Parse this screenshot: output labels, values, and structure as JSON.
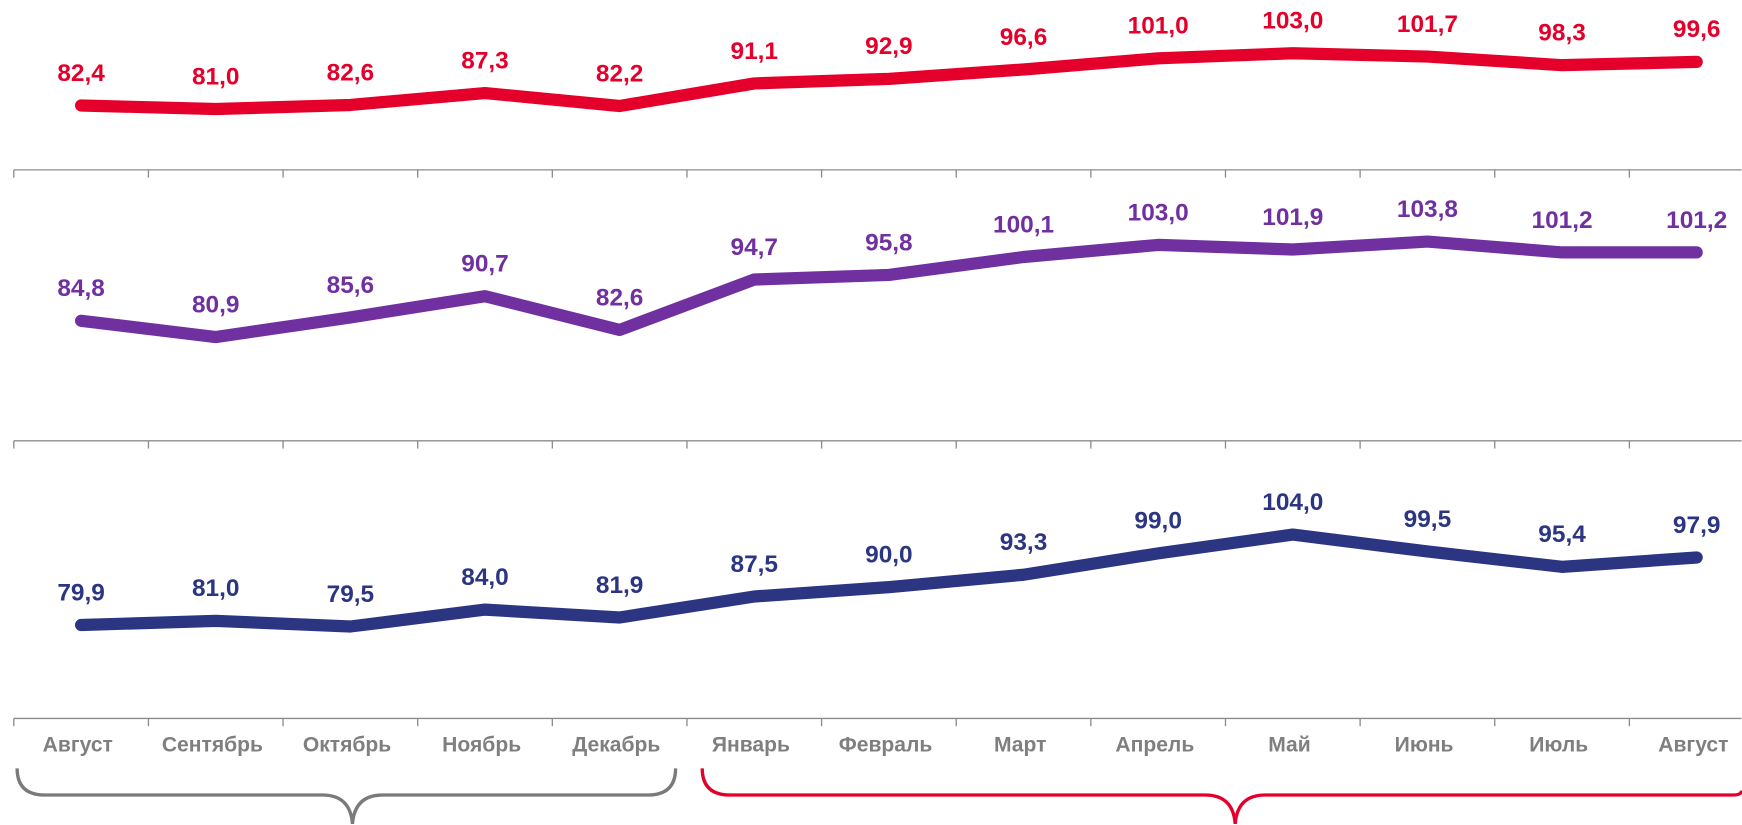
{
  "chart_data": [
    {
      "type": "line",
      "ylim": [
        57,
        124
      ],
      "series": [
        {
          "color": "#e4002b",
          "values": [
            82.4,
            81.0,
            82.6,
            87.3,
            82.2,
            91.1,
            92.9,
            96.6,
            101.0,
            103.0,
            101.7,
            98.3,
            99.6
          ],
          "value_labels": [
            "82,4",
            "81,0",
            "82,6",
            "87,3",
            "82,2",
            "91,1",
            "92,9",
            "96,6",
            "101,0",
            "103,0",
            "101,7",
            "98,3",
            "99,6"
          ]
        }
      ]
    },
    {
      "type": "line",
      "ylim": [
        56,
        121
      ],
      "series": [
        {
          "color": "#7030a0",
          "values": [
            84.8,
            80.9,
            85.6,
            90.7,
            82.6,
            94.7,
            95.8,
            100.1,
            103.0,
            101.9,
            103.8,
            101.2,
            101.2
          ],
          "value_labels": [
            "84,8",
            "80,9",
            "85,6",
            "90,7",
            "82,6",
            "94,7",
            "95,8",
            "100,1",
            "103,0",
            "101,9",
            "103,8",
            "101,2",
            "101,2"
          ]
        }
      ]
    },
    {
      "type": "line",
      "ylim": [
        55,
        129
      ],
      "categories": [
        "Август",
        "Сентябрь",
        "Октябрь",
        "Ноябрь",
        "Декабрь",
        "Январь",
        "Февраль",
        "Март",
        "Апрель",
        "Май",
        "Июнь",
        "Июль",
        "Август"
      ],
      "series": [
        {
          "color": "#2b3582",
          "values": [
            79.9,
            81.0,
            79.5,
            84.0,
            81.9,
            87.5,
            90.0,
            93.3,
            99.0,
            104.0,
            99.5,
            95.4,
            97.9
          ],
          "value_labels": [
            "79,9",
            "81,0",
            "79,5",
            "84,0",
            "81,9",
            "87,5",
            "90,0",
            "93,3",
            "99,0",
            "104,0",
            "99,5",
            "95,4",
            "97,9"
          ]
        }
      ]
    }
  ]
}
